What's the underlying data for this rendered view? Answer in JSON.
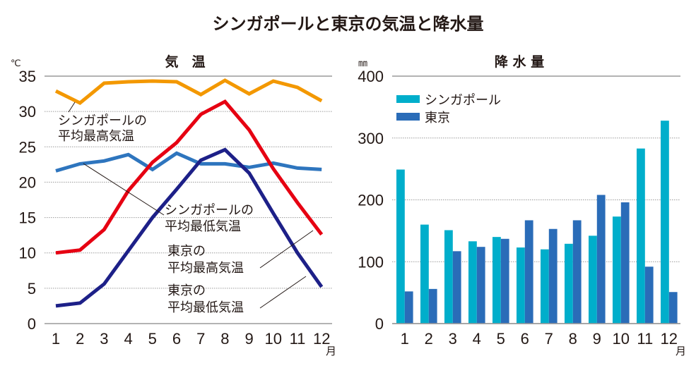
{
  "title": "シンガポールと東京の気温と降水量",
  "chart_data": [
    {
      "type": "line",
      "title": "気　温",
      "ylabel": "℃",
      "xlabel": "月",
      "ylim": [
        0,
        35
      ],
      "yticks": [
        0,
        5,
        10,
        15,
        20,
        25,
        30,
        35
      ],
      "categories": [
        "1",
        "2",
        "3",
        "4",
        "5",
        "6",
        "7",
        "8",
        "9",
        "10",
        "11",
        "12"
      ],
      "grid": true,
      "series": [
        {
          "name": "シンガポールの平均最高気温",
          "label_lines": [
            "シンガポールの",
            "平均最高気温"
          ],
          "color": "#F39800",
          "values": [
            32.9,
            31.2,
            34.0,
            34.2,
            34.3,
            34.2,
            32.4,
            34.4,
            32.5,
            34.3,
            33.4,
            31.5
          ]
        },
        {
          "name": "シンガポールの平均最低気温",
          "label_lines": [
            "シンガポールの",
            "平均最低気温"
          ],
          "color": "#2E75BE",
          "values": [
            21.6,
            22.6,
            23.0,
            23.9,
            21.8,
            24.1,
            22.6,
            22.6,
            22.1,
            22.7,
            22.0,
            21.8
          ]
        },
        {
          "name": "東京の平均最高気温",
          "label_lines": [
            "東京の",
            "平均最高気温"
          ],
          "color": "#E60012",
          "values": [
            10.0,
            10.4,
            13.3,
            18.8,
            22.8,
            25.6,
            29.6,
            31.4,
            27.4,
            21.9,
            17.1,
            12.6
          ]
        },
        {
          "name": "東京の平均最低気温",
          "label_lines": [
            "東京の",
            "平均最低気温"
          ],
          "color": "#1D2088",
          "values": [
            2.5,
            2.9,
            5.6,
            10.3,
            15.0,
            19.0,
            23.1,
            24.6,
            21.3,
            15.6,
            10.0,
            5.2
          ]
        }
      ]
    },
    {
      "type": "bar",
      "title": "降 水 量",
      "ylabel": "㎜",
      "xlabel": "月",
      "ylim": [
        0,
        400
      ],
      "yticks": [
        0,
        100,
        200,
        300,
        400
      ],
      "categories": [
        "1",
        "2",
        "3",
        "4",
        "5",
        "6",
        "7",
        "8",
        "9",
        "10",
        "11",
        "12"
      ],
      "grid": true,
      "legend": "top-left",
      "series": [
        {
          "name": "シンガポール",
          "color": "#00AECB",
          "values": [
            249,
            160,
            151,
            133,
            140,
            123,
            120,
            129,
            142,
            173,
            283,
            328
          ]
        },
        {
          "name": "東京",
          "color": "#2A6CB8",
          "values": [
            52,
            56,
            117,
            124,
            137,
            167,
            153,
            167,
            208,
            196,
            92,
            51
          ]
        }
      ]
    }
  ]
}
